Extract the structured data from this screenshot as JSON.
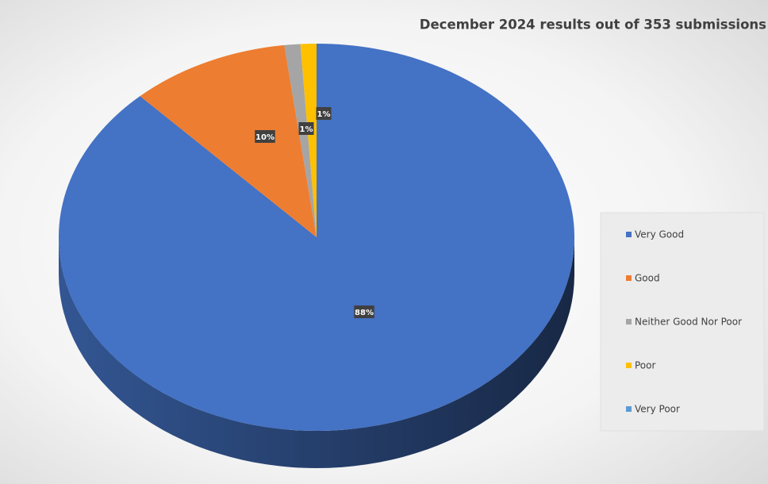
{
  "chart_data": {
    "type": "pie3d",
    "title": "December 2024 results out of 353 submissions",
    "categories": [
      "Very Good",
      "Good",
      "Neither Good Nor Poor",
      "Poor",
      "Very Poor"
    ],
    "values": [
      88,
      10,
      1,
      1,
      0
    ],
    "value_labels": [
      "88%",
      "10%",
      "1%",
      "1%",
      null
    ],
    "colors": [
      "#4472c4",
      "#ed7d31",
      "#a5a5a5",
      "#ffc000",
      "#5b9bd5"
    ],
    "legend": "right"
  }
}
